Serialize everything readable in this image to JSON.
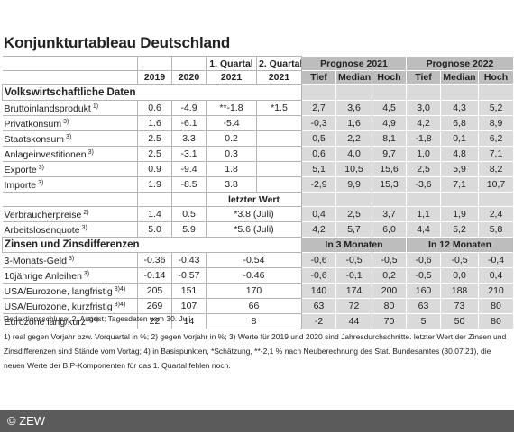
{
  "header": {
    "title": "Konjunkturtableau Deutschland"
  },
  "table": {
    "head": {
      "q1": "1. Quartal",
      "q2": "2. Quartal",
      "p2021": "Prognose 2021",
      "p2022": "Prognose 2022",
      "years": [
        "2019",
        "2020",
        "2021",
        "2021"
      ],
      "sub": [
        "Tief",
        "Median",
        "Hoch",
        "Tief",
        "Median",
        "Hoch"
      ]
    },
    "section1": "Volkswirtschaftliche Daten",
    "rows1": [
      {
        "label": "Bruttoinlandsprodukt",
        "note": "1)",
        "values": [
          "0.6",
          "-4.9",
          "**-1.8",
          "*1.5",
          "2,7",
          "3,6",
          "4,5",
          "3,0",
          "4,3",
          "5,2"
        ]
      },
      {
        "label": "Privatkonsum",
        "note": "3)",
        "values": [
          "1.6",
          "-6.1",
          "-5.4",
          null,
          "-0,3",
          "1,6",
          "4,9",
          "4,2",
          "6,8",
          "8,9"
        ]
      },
      {
        "label": "Staatskonsum",
        "note": "3)",
        "values": [
          "2.5",
          "3.3",
          "0.2",
          null,
          "0,5",
          "2,2",
          "8,1",
          "-1,8",
          "0,1",
          "6,2"
        ]
      },
      {
        "label": "Anlageinvestitionen",
        "note": "3)",
        "values": [
          "2.5",
          "-3.1",
          "0.3",
          null,
          "0,6",
          "4,0",
          "9,7",
          "1,0",
          "4,8",
          "7,1"
        ]
      },
      {
        "label": "Exporte",
        "note": "3)",
        "values": [
          "0.9",
          "-9.4",
          "1.8",
          null,
          "5,1",
          "10,5",
          "15,6",
          "2,5",
          "5,9",
          "8,2"
        ]
      },
      {
        "label": "Importe",
        "note": "3)",
        "values": [
          "1.9",
          "-8.5",
          "3.8",
          null,
          "-2,9",
          "9,9",
          "15,3",
          "-3,6",
          "7,1",
          "10,7"
        ]
      }
    ],
    "last_value": "letzter Wert",
    "rows2": [
      {
        "label": "Verbraucherpreise",
        "note": "2)",
        "values": [
          "1.4",
          "0.5",
          "*3.8 (Juli)",
          "0,4",
          "2,5",
          "3,7",
          "1,1",
          "1,9",
          "2,4"
        ]
      },
      {
        "label": "Arbeitslosenquote",
        "note": "3)",
        "values": [
          "5.0",
          "5.9",
          "*5.6 (Juli)",
          "4,2",
          "5,7",
          "6,0",
          "4,4",
          "5,2",
          "5,8"
        ]
      }
    ],
    "section2": "Zinsen und Zinsdifferenzen",
    "in3": "In 3 Monaten",
    "in12": "In 12 Monaten",
    "rows3": [
      {
        "label": "3-Monats-Geld",
        "note": "3)",
        "values": [
          "-0.36",
          "-0.43",
          "-0.54",
          "-0,6",
          "-0,5",
          "-0,5",
          "-0,6",
          "-0,5",
          "-0,4"
        ]
      },
      {
        "label": "10jährige Anleihen",
        "note": "3)",
        "values": [
          "-0.14",
          "-0.57",
          "-0.46",
          "-0,6",
          "-0,1",
          "0,2",
          "-0,5",
          "0,0",
          "0,4"
        ]
      },
      {
        "label": "USA/Eurozone, langfristig",
        "note": "3)4)",
        "values": [
          "205",
          "151",
          "170",
          "140",
          "174",
          "200",
          "160",
          "188",
          "210"
        ]
      },
      {
        "label": "USA/Eurozone, kurzfristig",
        "note": "3)4)",
        "values": [
          "269",
          "107",
          "66",
          "63",
          "72",
          "80",
          "63",
          "73",
          "80"
        ]
      },
      {
        "label": "Eurozone lang/kurz",
        "note": "3)4)",
        "values": [
          "22",
          "14",
          "8",
          "-2",
          "44",
          "70",
          "5",
          "50",
          "80"
        ]
      }
    ]
  },
  "editorial": "Redaktionsschluss: 2. August; Tagesdaten vom 30. Juli",
  "footnotes": "1) real gegen Vorjahr bzw. Vorquartal in %; 2) gegen Vorjahr in %; 3) Werte für 2019 und 2020 sind Jahresdurchschnitte. letzter Wert der Zinsen und Zinsdifferenzen sind Stände vom Vortag; 4) in Basispunkten, *Schätzung, **-2,1 % nach Neuberechnung des Stat. Bundesamtes (30.07.21), die neuen Werte der BIP-Komponenten für das 1. Quartal fehlen noch.",
  "copyright": "© ZEW"
}
